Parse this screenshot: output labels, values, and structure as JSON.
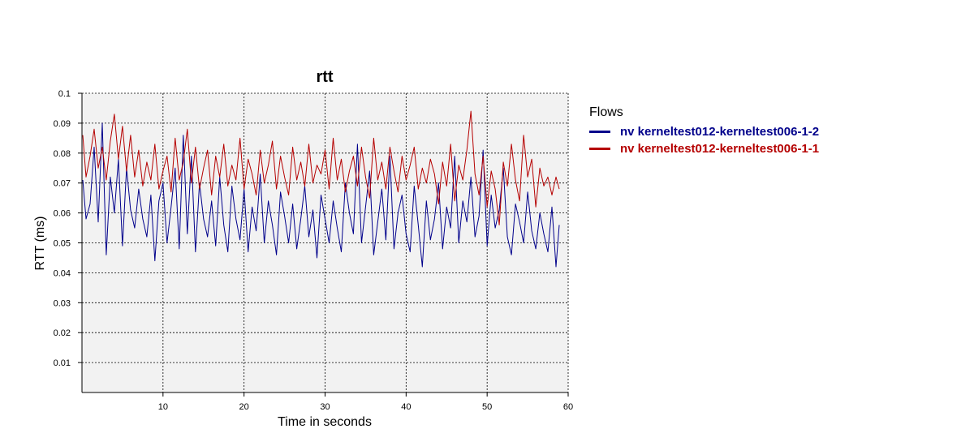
{
  "chart_data": {
    "type": "line",
    "title": "rtt",
    "xlabel": "Time in seconds",
    "ylabel": "RTT (ms)",
    "xlim": [
      0,
      60
    ],
    "ylim": [
      0,
      0.1
    ],
    "x_ticks": [
      10,
      20,
      30,
      40,
      50,
      60
    ],
    "x_tick_labels": [
      "10",
      "20",
      "30",
      "40",
      "50",
      "60"
    ],
    "y_ticks": [
      0.01,
      0.02,
      0.03,
      0.04,
      0.05,
      0.06,
      0.07,
      0.08,
      0.09,
      0.1
    ],
    "y_tick_labels": [
      "0.01",
      "0.02",
      "0.03",
      "0.04",
      "0.05",
      "0.06",
      "0.07",
      "0.08",
      "0.09",
      "0.1"
    ],
    "grid": true,
    "legend_title": "Flows",
    "legend_position": "right",
    "x": [
      0.1,
      0.5,
      1.0,
      1.5,
      2.0,
      2.5,
      3.0,
      3.5,
      4.0,
      4.5,
      5.0,
      5.5,
      6.0,
      6.5,
      7.0,
      7.5,
      8.0,
      8.5,
      9.0,
      9.5,
      10.0,
      10.5,
      11.0,
      11.5,
      12.0,
      12.5,
      13.0,
      13.5,
      14.0,
      14.5,
      15.0,
      15.5,
      16.0,
      16.5,
      17.0,
      17.5,
      18.0,
      18.5,
      19.0,
      19.5,
      20.0,
      20.5,
      21.0,
      21.5,
      22.0,
      22.5,
      23.0,
      23.5,
      24.0,
      24.5,
      25.0,
      25.5,
      26.0,
      26.5,
      27.0,
      27.5,
      28.0,
      28.5,
      29.0,
      29.5,
      30.0,
      30.5,
      31.0,
      31.5,
      32.0,
      32.5,
      33.0,
      33.5,
      34.0,
      34.5,
      35.0,
      35.5,
      36.0,
      36.5,
      37.0,
      37.5,
      38.0,
      38.5,
      39.0,
      39.5,
      40.0,
      40.5,
      41.0,
      41.5,
      42.0,
      42.5,
      43.0,
      43.5,
      44.0,
      44.5,
      45.0,
      45.5,
      46.0,
      46.5,
      47.0,
      47.5,
      48.0,
      48.5,
      49.0,
      49.5,
      50.0,
      50.5,
      51.0,
      51.5,
      52.0,
      52.5,
      53.0,
      53.5,
      54.0,
      54.5,
      55.0,
      55.5,
      56.0,
      56.5,
      57.0,
      57.5,
      58.0,
      58.5,
      58.9
    ],
    "series": [
      {
        "name": "nv kerneltest012-kerneltest006-1-2",
        "color": "#00008b",
        "values": [
          0.071,
          0.058,
          0.063,
          0.082,
          0.057,
          0.09,
          0.046,
          0.072,
          0.06,
          0.078,
          0.049,
          0.075,
          0.061,
          0.055,
          0.068,
          0.058,
          0.052,
          0.066,
          0.044,
          0.064,
          0.07,
          0.05,
          0.062,
          0.075,
          0.048,
          0.086,
          0.053,
          0.079,
          0.047,
          0.07,
          0.058,
          0.052,
          0.064,
          0.049,
          0.072,
          0.056,
          0.047,
          0.069,
          0.058,
          0.051,
          0.068,
          0.047,
          0.062,
          0.054,
          0.073,
          0.05,
          0.064,
          0.056,
          0.046,
          0.067,
          0.059,
          0.05,
          0.063,
          0.048,
          0.058,
          0.069,
          0.052,
          0.061,
          0.045,
          0.066,
          0.058,
          0.05,
          0.064,
          0.055,
          0.047,
          0.07,
          0.06,
          0.053,
          0.083,
          0.05,
          0.062,
          0.074,
          0.046,
          0.057,
          0.068,
          0.051,
          0.079,
          0.048,
          0.06,
          0.066,
          0.053,
          0.047,
          0.069,
          0.056,
          0.042,
          0.064,
          0.051,
          0.058,
          0.07,
          0.048,
          0.062,
          0.055,
          0.079,
          0.05,
          0.064,
          0.057,
          0.072,
          0.052,
          0.059,
          0.081,
          0.049,
          0.066,
          0.055,
          0.061,
          0.075,
          0.052,
          0.046,
          0.063,
          0.057,
          0.05,
          0.067,
          0.054,
          0.048,
          0.06,
          0.053,
          0.047,
          0.062,
          0.042,
          0.056
        ]
      },
      {
        "name": "nv kerneltest012-kerneltest006-1-1",
        "color": "#b50000",
        "values": [
          0.086,
          0.072,
          0.079,
          0.088,
          0.075,
          0.082,
          0.071,
          0.084,
          0.093,
          0.078,
          0.089,
          0.074,
          0.086,
          0.072,
          0.081,
          0.069,
          0.077,
          0.071,
          0.083,
          0.068,
          0.074,
          0.079,
          0.067,
          0.085,
          0.071,
          0.077,
          0.088,
          0.07,
          0.082,
          0.068,
          0.075,
          0.081,
          0.066,
          0.079,
          0.072,
          0.083,
          0.069,
          0.076,
          0.071,
          0.085,
          0.068,
          0.078,
          0.073,
          0.066,
          0.081,
          0.07,
          0.076,
          0.084,
          0.068,
          0.079,
          0.072,
          0.066,
          0.082,
          0.071,
          0.077,
          0.069,
          0.083,
          0.07,
          0.076,
          0.073,
          0.081,
          0.068,
          0.085,
          0.071,
          0.078,
          0.067,
          0.074,
          0.079,
          0.069,
          0.082,
          0.072,
          0.065,
          0.085,
          0.071,
          0.077,
          0.068,
          0.082,
          0.074,
          0.067,
          0.079,
          0.071,
          0.076,
          0.082,
          0.068,
          0.075,
          0.07,
          0.078,
          0.073,
          0.063,
          0.077,
          0.069,
          0.083,
          0.064,
          0.076,
          0.071,
          0.081,
          0.094,
          0.073,
          0.066,
          0.079,
          0.062,
          0.074,
          0.068,
          0.056,
          0.077,
          0.069,
          0.083,
          0.071,
          0.064,
          0.086,
          0.072,
          0.078,
          0.062,
          0.075,
          0.069,
          0.072,
          0.066,
          0.072,
          0.068
        ]
      }
    ]
  }
}
